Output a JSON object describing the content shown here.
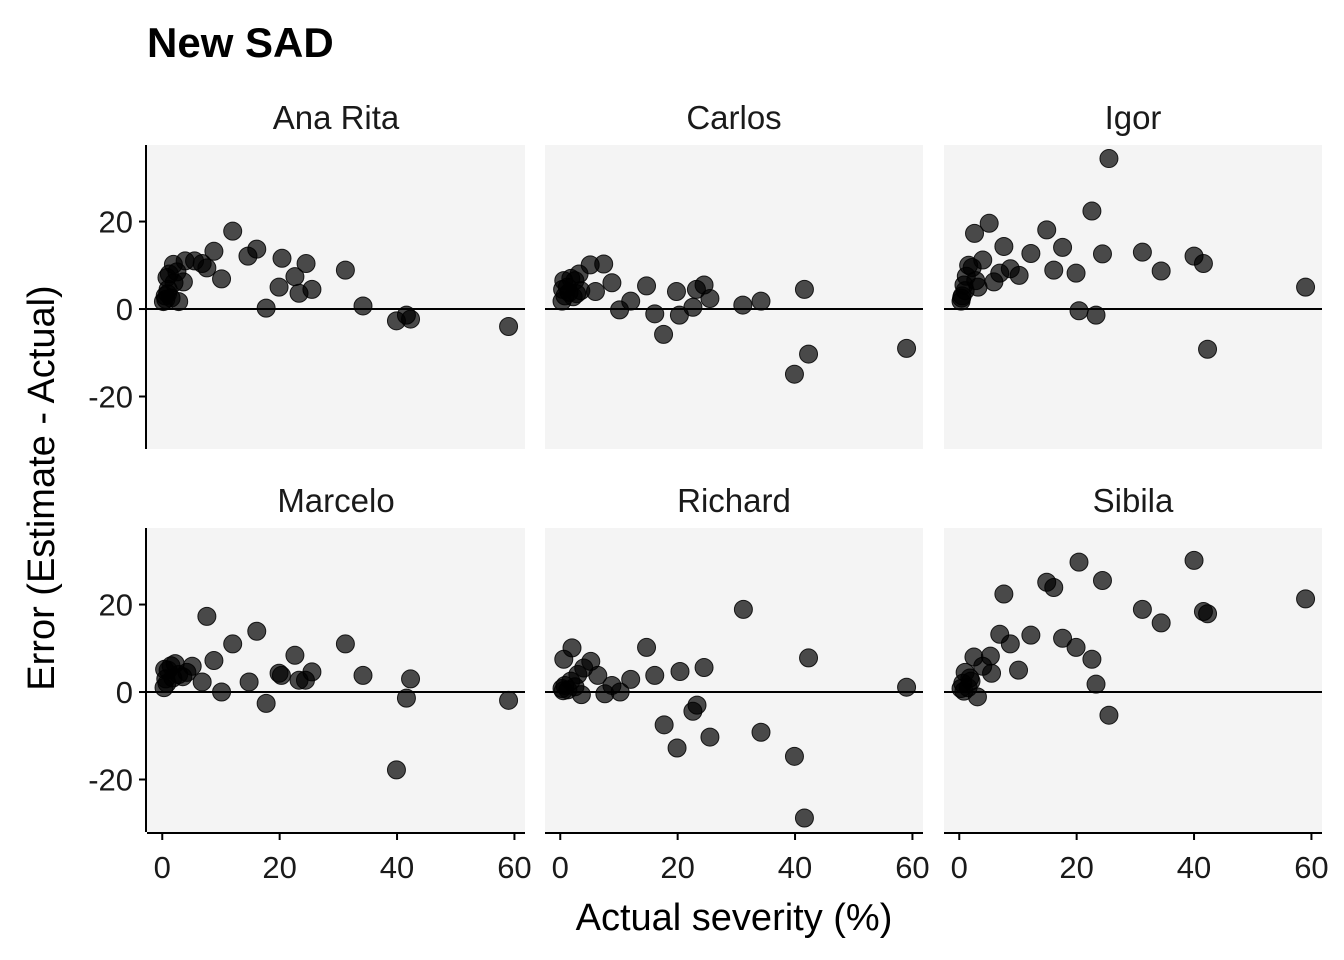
{
  "chart_data": {
    "type": "scatter",
    "title": "New SAD",
    "xlabel": "Actual severity (%)",
    "ylabel": "Error (Estimate - Actual)",
    "xlim": [
      -2.6,
      61.8
    ],
    "ylim": [
      -32,
      37.5
    ],
    "xticks": [
      0,
      20,
      40,
      60
    ],
    "yticks": [
      -20,
      0,
      20
    ],
    "xtick_labels": [
      "0",
      "20",
      "40",
      "60"
    ],
    "ytick_labels": [
      "-20",
      "0",
      "20"
    ],
    "reference_line": 0,
    "grid": false,
    "layout": "facet 2 rows x 3 columns",
    "panels": [
      {
        "name": "Ana Rita",
        "points": [
          [
            12.0,
            17.8
          ],
          [
            16.1,
            13.7
          ],
          [
            14.6,
            12.1
          ],
          [
            20.4,
            11.6
          ],
          [
            24.5,
            10.4
          ],
          [
            8.8,
            13.2
          ],
          [
            31.2,
            8.9
          ],
          [
            22.6,
            7.4
          ],
          [
            19.9,
            5.0
          ],
          [
            23.3,
            3.6
          ],
          [
            25.5,
            4.5
          ],
          [
            17.7,
            0.2
          ],
          [
            34.2,
            0.7
          ],
          [
            39.9,
            -2.7
          ],
          [
            41.6,
            -1.4
          ],
          [
            42.3,
            -2.3
          ],
          [
            59.0,
            -4.0
          ],
          [
            10.1,
            6.9
          ],
          [
            7.6,
            9.4
          ],
          [
            6.8,
            10.4
          ],
          [
            5.5,
            11.0
          ],
          [
            3.9,
            11.0
          ],
          [
            1.9,
            10.2
          ],
          [
            0.8,
            7.2
          ],
          [
            3.6,
            6.2
          ],
          [
            2.8,
            1.7
          ],
          [
            0.2,
            1.7
          ],
          [
            0.5,
            3.0
          ],
          [
            1.0,
            4.5
          ],
          [
            1.5,
            2.5
          ],
          [
            2.0,
            6.0
          ],
          [
            0.6,
            2.2
          ],
          [
            1.2,
            8.0
          ],
          [
            2.5,
            8.5
          ],
          [
            0.9,
            3.5
          ]
        ]
      },
      {
        "name": "Carlos",
        "points": [
          [
            7.4,
            10.3
          ],
          [
            5.1,
            10.1
          ],
          [
            8.8,
            6.0
          ],
          [
            6.0,
            4.0
          ],
          [
            14.7,
            5.3
          ],
          [
            19.8,
            4.0
          ],
          [
            24.5,
            5.5
          ],
          [
            23.2,
            4.5
          ],
          [
            25.5,
            2.4
          ],
          [
            22.6,
            0.4
          ],
          [
            20.3,
            -1.4
          ],
          [
            16.1,
            -1.1
          ],
          [
            17.6,
            -5.8
          ],
          [
            12.0,
            1.8
          ],
          [
            10.1,
            -0.2
          ],
          [
            31.1,
            0.9
          ],
          [
            34.2,
            1.8
          ],
          [
            41.6,
            4.5
          ],
          [
            42.3,
            -10.3
          ],
          [
            39.9,
            -14.9
          ],
          [
            59.0,
            -9.0
          ],
          [
            0.3,
            1.8
          ],
          [
            0.8,
            3.0
          ],
          [
            1.2,
            5.0
          ],
          [
            1.8,
            7.0
          ],
          [
            2.5,
            6.5
          ],
          [
            3.2,
            8.0
          ],
          [
            0.6,
            6.5
          ],
          [
            1.5,
            3.8
          ],
          [
            2.2,
            2.8
          ],
          [
            3.5,
            4.2
          ],
          [
            0.4,
            4.5
          ],
          [
            2.8,
            3.5
          ]
        ]
      },
      {
        "name": "Igor",
        "points": [
          [
            25.5,
            34.4
          ],
          [
            22.6,
            22.4
          ],
          [
            5.1,
            19.6
          ],
          [
            2.6,
            17.3
          ],
          [
            14.9,
            18.1
          ],
          [
            17.6,
            14.1
          ],
          [
            7.6,
            14.3
          ],
          [
            12.2,
            12.7
          ],
          [
            24.4,
            12.6
          ],
          [
            31.2,
            13.0
          ],
          [
            40.0,
            12.1
          ],
          [
            41.6,
            10.4
          ],
          [
            34.4,
            8.7
          ],
          [
            16.1,
            8.9
          ],
          [
            19.9,
            8.2
          ],
          [
            10.2,
            7.7
          ],
          [
            8.7,
            9.2
          ],
          [
            6.9,
            8.2
          ],
          [
            5.9,
            6.2
          ],
          [
            4.0,
            11.2
          ],
          [
            59.0,
            5.0
          ],
          [
            20.4,
            -0.4
          ],
          [
            23.3,
            -1.4
          ],
          [
            42.3,
            -9.2
          ],
          [
            0.3,
            1.8
          ],
          [
            0.5,
            3.0
          ],
          [
            0.8,
            5.5
          ],
          [
            1.2,
            7.5
          ],
          [
            1.6,
            10.0
          ],
          [
            2.2,
            9.5
          ],
          [
            2.8,
            6.5
          ],
          [
            0.4,
            2.5
          ],
          [
            1.0,
            4.2
          ],
          [
            3.2,
            5.0
          ]
        ]
      },
      {
        "name": "Marcelo",
        "points": [
          [
            7.6,
            17.3
          ],
          [
            16.1,
            13.9
          ],
          [
            12.0,
            11.0
          ],
          [
            8.8,
            7.2
          ],
          [
            31.2,
            11.0
          ],
          [
            22.6,
            8.4
          ],
          [
            25.5,
            4.6
          ],
          [
            34.2,
            3.8
          ],
          [
            19.9,
            4.3
          ],
          [
            20.3,
            3.8
          ],
          [
            23.3,
            2.7
          ],
          [
            24.4,
            2.7
          ],
          [
            14.8,
            2.3
          ],
          [
            10.1,
            0.0
          ],
          [
            17.7,
            -2.6
          ],
          [
            42.3,
            3.0
          ],
          [
            41.6,
            -1.4
          ],
          [
            39.9,
            -17.8
          ],
          [
            59.0,
            -1.9
          ],
          [
            6.8,
            2.3
          ],
          [
            5.1,
            5.9
          ],
          [
            0.3,
            1.0
          ],
          [
            0.6,
            3.0
          ],
          [
            1.0,
            5.0
          ],
          [
            1.5,
            6.0
          ],
          [
            2.2,
            6.5
          ],
          [
            2.8,
            4.0
          ],
          [
            3.5,
            3.5
          ],
          [
            0.8,
            2.0
          ],
          [
            1.8,
            3.2
          ],
          [
            4.2,
            4.5
          ],
          [
            0.4,
            5.2
          ]
        ]
      },
      {
        "name": "Richard",
        "points": [
          [
            31.2,
            18.9
          ],
          [
            14.7,
            10.2
          ],
          [
            42.3,
            7.8
          ],
          [
            59.0,
            1.1
          ],
          [
            24.5,
            5.6
          ],
          [
            20.4,
            4.7
          ],
          [
            16.1,
            3.8
          ],
          [
            12.0,
            2.9
          ],
          [
            2.0,
            10.1
          ],
          [
            0.6,
            7.5
          ],
          [
            5.2,
            7.0
          ],
          [
            6.4,
            3.8
          ],
          [
            8.8,
            1.5
          ],
          [
            10.2,
            0.0
          ],
          [
            7.6,
            -0.4
          ],
          [
            3.6,
            -0.6
          ],
          [
            23.3,
            -3.0
          ],
          [
            22.6,
            -4.4
          ],
          [
            17.7,
            -7.5
          ],
          [
            25.5,
            -10.3
          ],
          [
            19.9,
            -12.8
          ],
          [
            34.2,
            -9.2
          ],
          [
            39.9,
            -14.7
          ],
          [
            41.6,
            -28.8
          ],
          [
            0.3,
            0.8
          ],
          [
            0.8,
            1.5
          ],
          [
            1.3,
            0.5
          ],
          [
            1.8,
            2.5
          ],
          [
            2.5,
            1.2
          ],
          [
            3.0,
            4.0
          ],
          [
            4.0,
            5.5
          ],
          [
            0.5,
            0.3
          ]
        ]
      },
      {
        "name": "Sibila",
        "points": [
          [
            20.4,
            29.7
          ],
          [
            40.0,
            30.1
          ],
          [
            24.4,
            25.5
          ],
          [
            14.9,
            25.1
          ],
          [
            16.1,
            23.9
          ],
          [
            7.6,
            22.4
          ],
          [
            59.0,
            21.3
          ],
          [
            31.2,
            18.9
          ],
          [
            41.6,
            18.4
          ],
          [
            42.3,
            17.9
          ],
          [
            34.4,
            15.8
          ],
          [
            6.9,
            13.2
          ],
          [
            12.2,
            13.0
          ],
          [
            8.7,
            11.0
          ],
          [
            17.6,
            12.3
          ],
          [
            19.9,
            10.2
          ],
          [
            22.6,
            7.5
          ],
          [
            10.1,
            5.0
          ],
          [
            23.3,
            1.8
          ],
          [
            25.5,
            -5.3
          ],
          [
            5.3,
            8.2
          ],
          [
            5.5,
            4.3
          ],
          [
            4.0,
            5.9
          ],
          [
            3.1,
            -1.1
          ],
          [
            0.3,
            0.8
          ],
          [
            0.6,
            2.0
          ],
          [
            1.0,
            4.5
          ],
          [
            1.5,
            1.0
          ],
          [
            2.0,
            2.5
          ],
          [
            2.5,
            8.0
          ],
          [
            0.8,
            0.2
          ],
          [
            1.8,
            3.2
          ]
        ]
      }
    ]
  }
}
